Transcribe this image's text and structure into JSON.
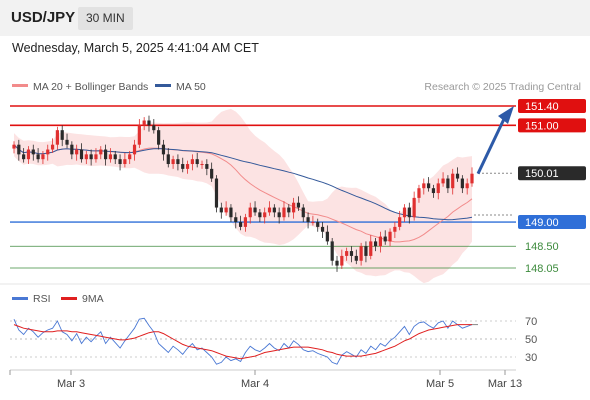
{
  "header": {
    "symbol": "USD/JPY",
    "timeframe": "30 MIN"
  },
  "timestamp": "Wednesday, March 5, 2025 4:41:04 AM CET",
  "legend": [
    {
      "label": "MA 20 + Bollinger Bands",
      "color": "#f28b8b"
    },
    {
      "label": "MA 50",
      "color": "#34599a"
    }
  ],
  "source": "Research © 2025 Trading Central",
  "rsi_legend": [
    {
      "label": "RSI",
      "color": "#4a78d4"
    },
    {
      "label": "9MA",
      "color": "#e02020"
    }
  ],
  "colors": {
    "up": "#e03030",
    "down": "#2a2a2a",
    "resistance": "#e01010",
    "pivot": "#2f6fd8",
    "support": "#3d8b3d",
    "arrow": "#2d5aa8",
    "band": "#fcdede"
  },
  "chart_data": [
    {
      "type": "candlestick",
      "title": "USD/JPY 30 MIN",
      "x_ticks": [
        "Mar 3",
        "Mar 4",
        "Mar 5",
        "Mar 13"
      ],
      "ylim": [
        147.8,
        151.7
      ],
      "levels": [
        {
          "value": 151.4,
          "label": "151.40",
          "kind": "resistance"
        },
        {
          "value": 151.0,
          "label": "151.00",
          "kind": "resistance"
        },
        {
          "value": 150.01,
          "label": "150.01",
          "kind": "last"
        },
        {
          "value": 149.0,
          "label": "149.00",
          "kind": "pivot"
        },
        {
          "value": 148.5,
          "label": "148.50",
          "kind": "support"
        },
        {
          "value": 148.05,
          "label": "148.05",
          "kind": "support"
        }
      ],
      "close": [
        150.6,
        150.4,
        150.3,
        150.5,
        150.4,
        150.3,
        150.4,
        150.5,
        150.6,
        150.9,
        150.7,
        150.6,
        150.4,
        150.5,
        150.3,
        150.4,
        150.3,
        150.4,
        150.5,
        150.3,
        150.4,
        150.3,
        150.2,
        150.3,
        150.4,
        150.6,
        151.0,
        151.1,
        151.0,
        150.9,
        150.6,
        150.4,
        150.2,
        150.3,
        150.2,
        150.1,
        150.2,
        150.3,
        150.2,
        150.2,
        150.1,
        149.9,
        149.3,
        149.2,
        149.3,
        149.1,
        149.0,
        148.9,
        149.1,
        149.3,
        149.2,
        149.1,
        149.2,
        149.3,
        149.2,
        149.1,
        149.3,
        149.2,
        149.4,
        149.3,
        149.1,
        149.0,
        149.0,
        148.9,
        148.8,
        148.6,
        148.2,
        148.1,
        148.3,
        148.4,
        148.3,
        148.2,
        148.5,
        148.3,
        148.6,
        148.5,
        148.7,
        148.6,
        148.8,
        148.9,
        149.1,
        149.3,
        149.1,
        149.5,
        149.7,
        149.8,
        149.7,
        149.6,
        149.8,
        149.9,
        149.7,
        150.0,
        149.9,
        149.7,
        149.8,
        150.0
      ]
    },
    {
      "type": "line",
      "title": "RSI",
      "y_ticks": [
        70,
        50,
        30
      ],
      "ylim": [
        20,
        80
      ],
      "series": [
        {
          "name": "RSI",
          "values": [
            72,
            60,
            55,
            62,
            58,
            52,
            57,
            60,
            62,
            70,
            58,
            55,
            48,
            56,
            45,
            52,
            47,
            53,
            58,
            45,
            52,
            46,
            40,
            48,
            55,
            62,
            72,
            73,
            65,
            58,
            45,
            40,
            35,
            42,
            38,
            33,
            40,
            45,
            38,
            40,
            35,
            30,
            22,
            24,
            30,
            26,
            28,
            25,
            35,
            42,
            38,
            36,
            40,
            45,
            40,
            37,
            45,
            40,
            48,
            44,
            38,
            36,
            37,
            34,
            32,
            30,
            24,
            22,
            32,
            36,
            33,
            30,
            38,
            34,
            42,
            38,
            45,
            42,
            48,
            52,
            58,
            64,
            55,
            64,
            68,
            69,
            65,
            62,
            68,
            70,
            62,
            70,
            66,
            62,
            64,
            66
          ]
        },
        {
          "name": "9MA",
          "values": [
            66,
            64,
            62,
            61,
            60,
            59,
            58,
            58,
            58,
            59,
            59,
            59,
            58,
            58,
            57,
            56,
            55,
            54,
            53,
            52,
            51,
            50,
            49,
            49,
            50,
            51,
            53,
            55,
            57,
            58,
            58,
            56,
            53,
            50,
            47,
            44,
            42,
            41,
            40,
            39,
            38,
            37,
            35,
            33,
            31,
            30,
            29,
            28,
            29,
            30,
            31,
            33,
            35,
            36,
            37,
            38,
            39,
            40,
            41,
            41,
            41,
            41,
            40,
            39,
            38,
            36,
            35,
            33,
            32,
            31,
            31,
            31,
            31,
            32,
            33,
            34,
            36,
            38,
            40,
            42,
            45,
            48,
            50,
            53,
            56,
            58,
            60,
            61,
            62,
            63,
            64,
            65,
            66,
            66,
            66,
            66
          ]
        }
      ]
    }
  ]
}
